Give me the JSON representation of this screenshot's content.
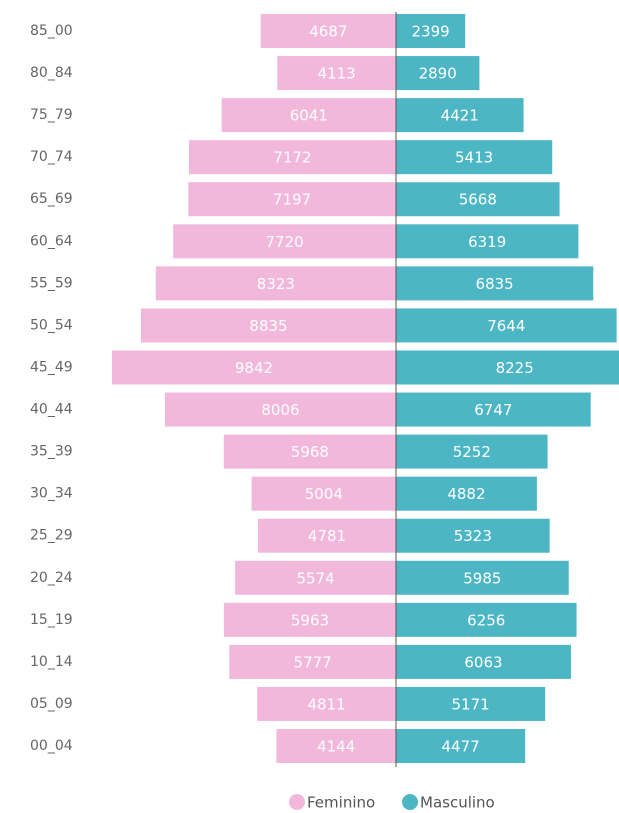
{
  "chart_data": {
    "type": "pyramid",
    "categories": [
      "85_00",
      "80_84",
      "75_79",
      "70_74",
      "65_69",
      "60_64",
      "55_59",
      "50_54",
      "45_49",
      "40_44",
      "35_39",
      "30_34",
      "25_29",
      "20_24",
      "15_19",
      "10_14",
      "05_09",
      "00_04"
    ],
    "series": [
      {
        "name": "Feminino",
        "color": "#f2b8dc",
        "values": [
          4687,
          4113,
          6041,
          7172,
          7197,
          7720,
          8323,
          8835,
          9842,
          8006,
          5968,
          5004,
          4781,
          5574,
          5963,
          5777,
          4811,
          4144
        ]
      },
      {
        "name": "Masculino",
        "color": "#4cb6c4",
        "values": [
          2399,
          2890,
          4421,
          5413,
          5668,
          6319,
          6835,
          7644,
          8225,
          6747,
          5252,
          4882,
          5323,
          5985,
          6256,
          6063,
          5171,
          4477
        ]
      }
    ],
    "legend": "bottom"
  }
}
